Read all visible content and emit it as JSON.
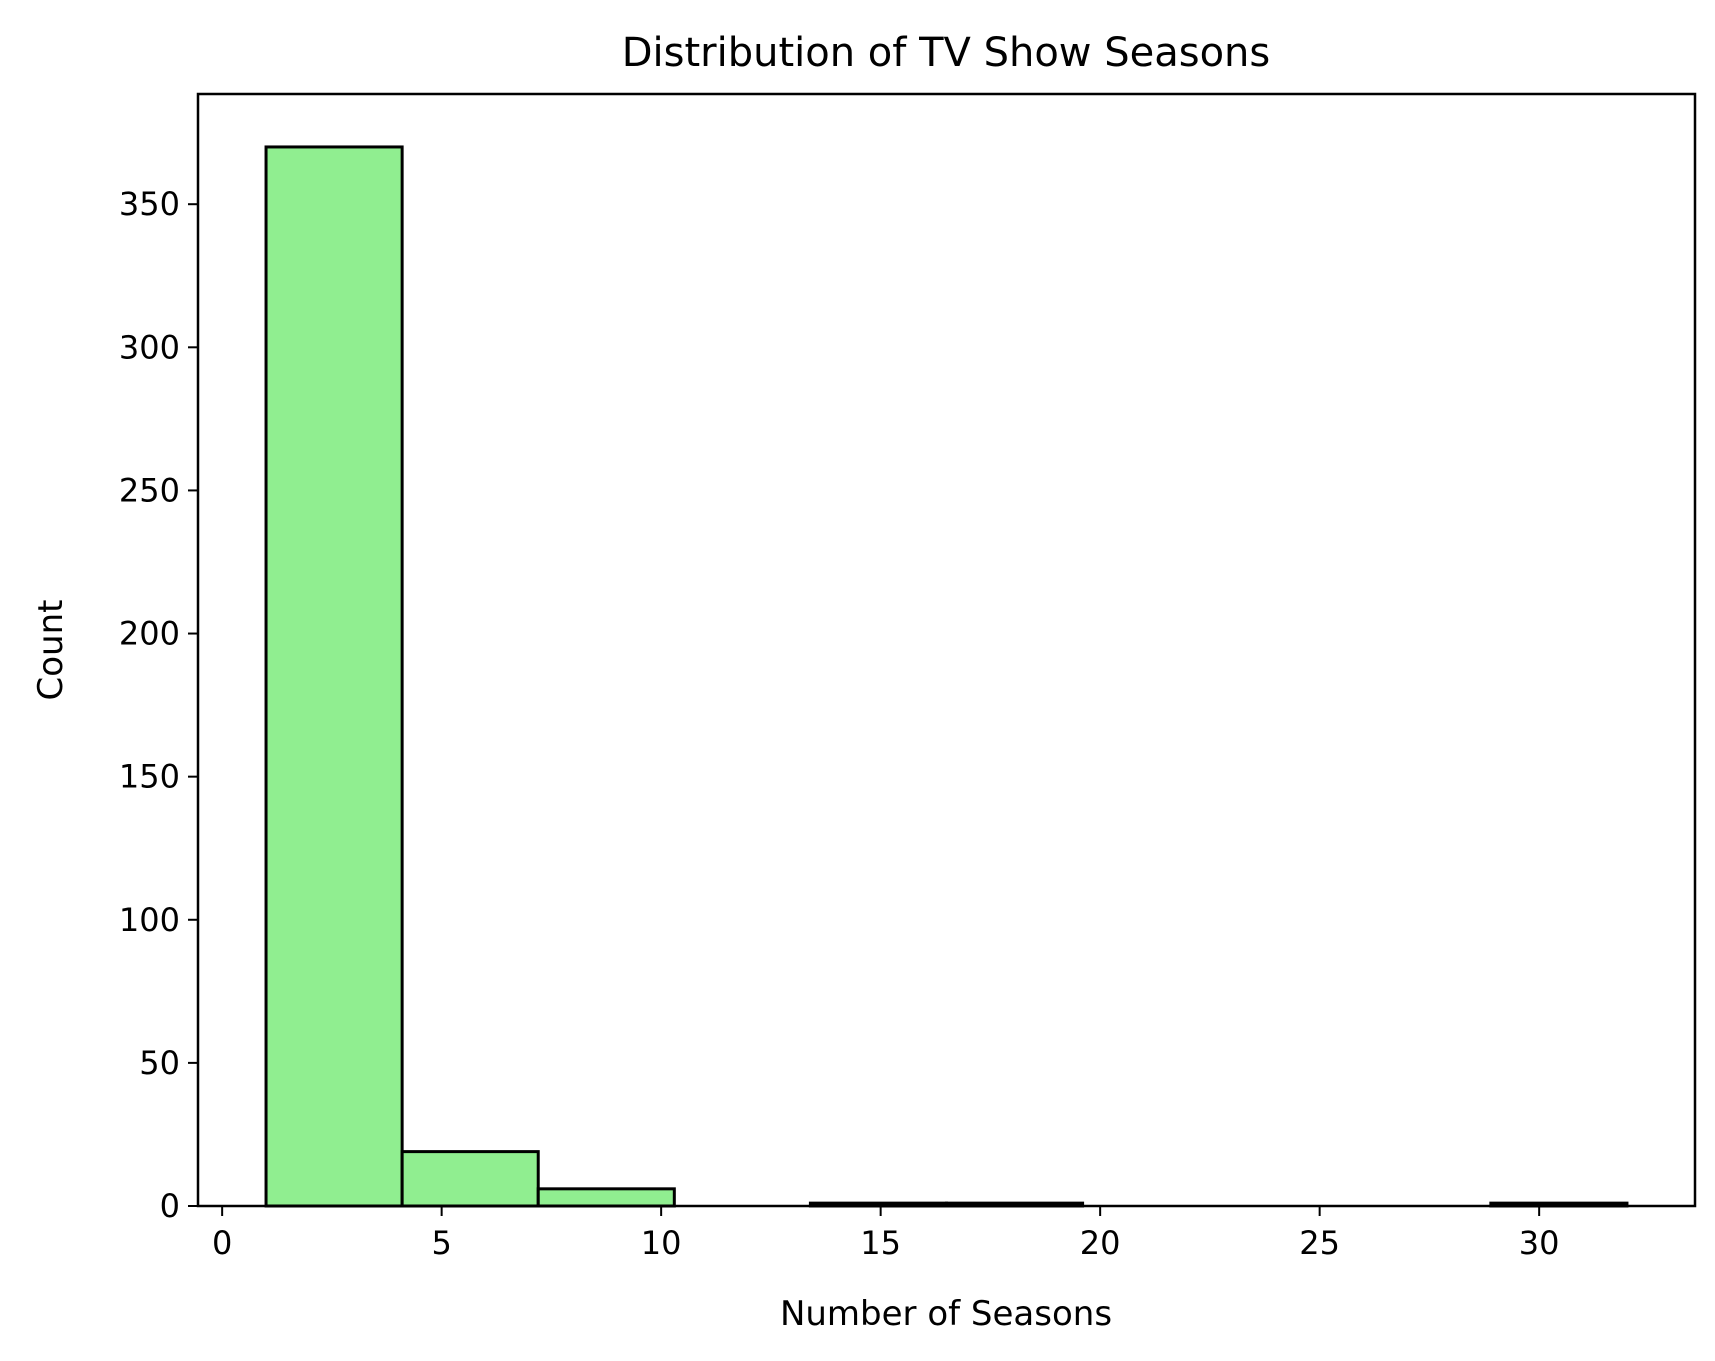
{
  "chart_data": {
    "type": "bar",
    "title": "Distribution of TV Show Seasons",
    "xlabel": "Number of Seasons",
    "ylabel": "Count",
    "xlim": [
      -0.55,
      33.55
    ],
    "ylim": [
      0,
      388.5
    ],
    "xticks": [
      0,
      5,
      10,
      15,
      20,
      25,
      30
    ],
    "yticks": [
      0,
      50,
      100,
      150,
      200,
      250,
      300,
      350
    ],
    "bin_edges": [
      1,
      4.1,
      7.2,
      10.3,
      13.4,
      16.5,
      19.6,
      22.7,
      25.8,
      28.9,
      32
    ],
    "counts": [
      370,
      19,
      6,
      0,
      1,
      1,
      0,
      0,
      0,
      1
    ],
    "grid": false,
    "colors": {
      "bar_fill": "#90ee90",
      "bar_edge": "#000000",
      "axes": "#000000",
      "background": "#ffffff"
    }
  }
}
